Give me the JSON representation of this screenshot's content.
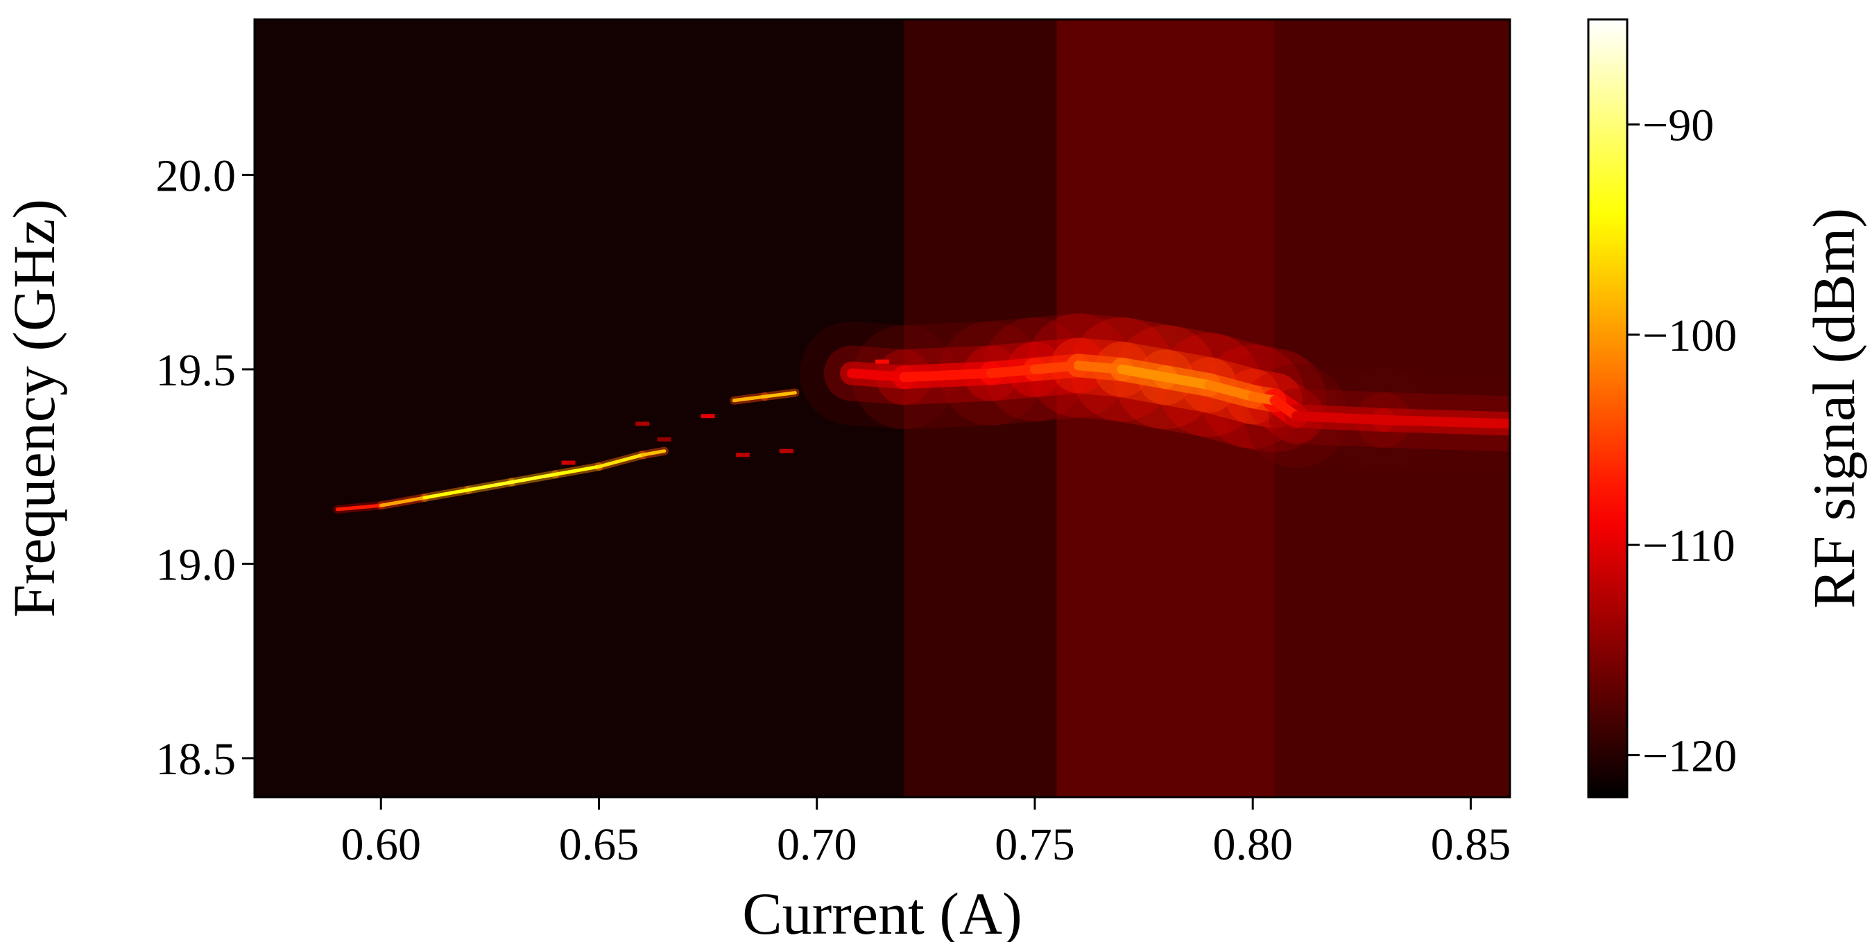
{
  "chart_data": {
    "type": "heatmap",
    "title": "",
    "xlabel": "Current (A)",
    "ylabel": "Frequency (GHz)",
    "xlim": [
      0.571,
      0.859
    ],
    "ylim": [
      18.4,
      20.4
    ],
    "x_ticks": [
      0.6,
      0.65,
      0.7,
      0.75,
      0.8,
      0.85
    ],
    "x_tick_labels": [
      "0.60",
      "0.65",
      "0.70",
      "0.75",
      "0.80",
      "0.85"
    ],
    "y_ticks": [
      18.5,
      19.0,
      19.5,
      20.0
    ],
    "y_tick_labels": [
      "18.5",
      "19.0",
      "19.5",
      "20.0"
    ],
    "grid": false,
    "colorbar": {
      "label": "RF signal (dBm)",
      "colormap": "hot",
      "range": [
        -122,
        -85
      ],
      "ticks": [
        -90,
        -100,
        -110,
        -120
      ],
      "tick_labels": [
        "−90",
        "−100",
        "−110",
        "−120"
      ]
    },
    "background_level_dBm": -121,
    "broad_background": [
      {
        "x_from": 0.571,
        "x_to": 0.72,
        "level_dBm": -121
      },
      {
        "x_from": 0.72,
        "x_to": 0.755,
        "level_dBm": -119
      },
      {
        "x_from": 0.755,
        "x_to": 0.805,
        "level_dBm": -117
      },
      {
        "x_from": 0.805,
        "x_to": 0.859,
        "level_dBm": -118
      }
    ],
    "series": [
      {
        "style": "narrow",
        "x": [
          0.59,
          0.6,
          0.61,
          0.62,
          0.63,
          0.64,
          0.65,
          0.66,
          0.665
        ],
        "y": [
          19.14,
          19.15,
          19.17,
          19.19,
          19.21,
          19.23,
          19.25,
          19.28,
          19.29
        ],
        "peak_dBm": [
          -110,
          -104,
          -95,
          -94,
          -93,
          -94,
          -95,
          -97,
          -99
        ]
      },
      {
        "style": "narrow",
        "x": [
          0.681,
          0.688,
          0.695
        ],
        "y": [
          19.42,
          19.43,
          19.44
        ],
        "peak_dBm": [
          -100,
          -97,
          -99
        ]
      },
      {
        "style": "broad",
        "x": [
          0.708,
          0.72,
          0.74,
          0.75,
          0.76,
          0.77,
          0.78,
          0.79,
          0.8,
          0.805,
          0.81,
          0.83,
          0.859
        ],
        "y": [
          19.49,
          19.48,
          19.49,
          19.5,
          19.51,
          19.5,
          19.48,
          19.46,
          19.43,
          19.42,
          19.38,
          19.37,
          19.36
        ],
        "peak_dBm": [
          -111,
          -108,
          -107,
          -106,
          -104,
          -101,
          -100,
          -101,
          -102,
          -103,
          -111,
          -110,
          -111
        ]
      }
    ],
    "spurs": [
      {
        "x": 0.675,
        "y": 19.38,
        "dBm": -110
      },
      {
        "x": 0.66,
        "y": 19.36,
        "dBm": -113
      },
      {
        "x": 0.665,
        "y": 19.32,
        "dBm": -114
      },
      {
        "x": 0.683,
        "y": 19.28,
        "dBm": -112
      },
      {
        "x": 0.693,
        "y": 19.29,
        "dBm": -112
      },
      {
        "x": 0.643,
        "y": 19.26,
        "dBm": -111
      },
      {
        "x": 0.715,
        "y": 19.52,
        "dBm": -108
      }
    ]
  }
}
